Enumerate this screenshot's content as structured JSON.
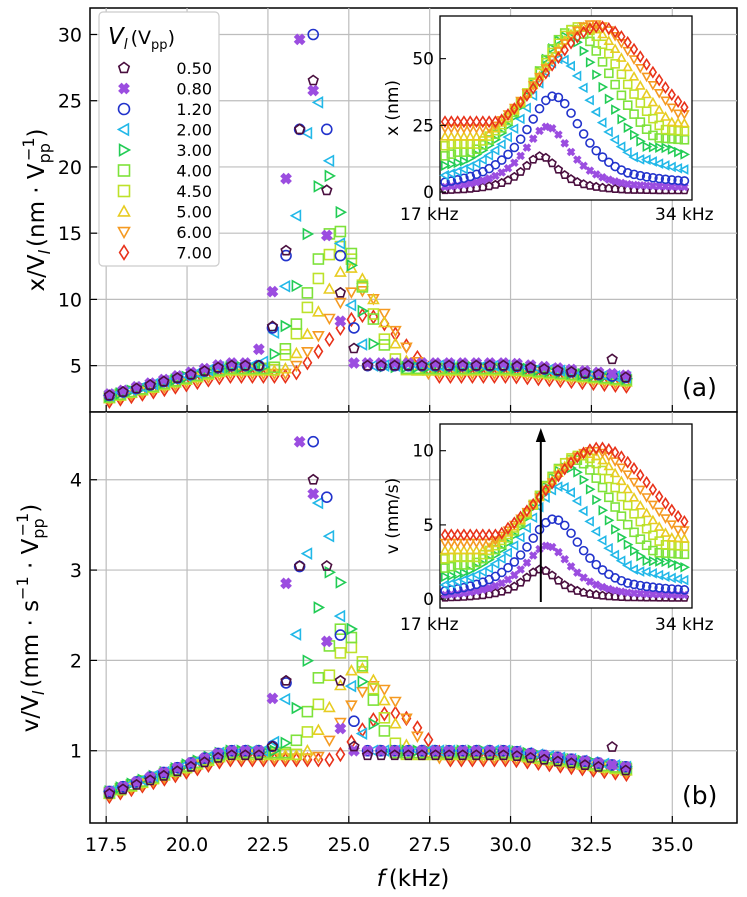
{
  "chart_data": [
    {
      "type": "scatter",
      "panel_label": "(a)",
      "ylabel_main": "x/V",
      "ylabel_sub": "l",
      "ylabel_unit": "(nm · V",
      "ylabel_unit_sub": "pp",
      "ylabel_unit_sup": "−1",
      "ylabel_close": ")",
      "xlim": [
        17,
        37
      ],
      "ylim": [
        1.5,
        32
      ],
      "yticks": [
        "5",
        "10",
        "15",
        "20",
        "25",
        "30"
      ],
      "legend": {
        "title_main": "V",
        "title_sub": "l",
        "title_unit": "(V",
        "title_unit_sub": "pp",
        "title_close": ")",
        "placement": "top-left",
        "entries": [
          "0.50",
          "0.80",
          "1.20",
          "2.00",
          "3.00",
          "4.00",
          "4.50",
          "5.00",
          "6.00",
          "7.00"
        ]
      },
      "series": [
        {
          "name": "0.50",
          "peak": 27.0,
          "f0": 23.8,
          "width": 1.5,
          "tail": 5.0
        },
        {
          "name": "0.80",
          "peak": 30.5,
          "f0": 23.6,
          "width": 1.4,
          "tail": 5.2
        },
        {
          "name": "1.20",
          "peak": 30.0,
          "f0": 23.9,
          "width": 1.5,
          "tail": 5.0
        },
        {
          "name": "2.00",
          "peak": 25.0,
          "f0": 24.0,
          "width": 1.7,
          "tail": 5.0
        },
        {
          "name": "3.00",
          "peak": 19.5,
          "f0": 24.3,
          "width": 2.1,
          "tail": 4.9
        },
        {
          "name": "4.00",
          "peak": 15.3,
          "f0": 24.6,
          "width": 2.6,
          "tail": 4.8
        },
        {
          "name": "4.50",
          "peak": 14.0,
          "f0": 24.7,
          "width": 2.8,
          "tail": 4.7
        },
        {
          "name": "5.00",
          "peak": 12.4,
          "f0": 25.0,
          "width": 3.1,
          "tail": 4.6
        },
        {
          "name": "6.00",
          "peak": 10.7,
          "f0": 25.3,
          "width": 3.6,
          "tail": 4.4
        },
        {
          "name": "7.00",
          "peak": 8.8,
          "f0": 25.5,
          "width": 4.3,
          "tail": 4.2
        }
      ],
      "inset": {
        "ylabel": "x (nm)",
        "x_start_label": "17 kHz",
        "x_end_label": "34 kHz",
        "ylim": [
          -3,
          66
        ],
        "yticks": [
          "0",
          "25",
          "50"
        ],
        "series_peaks": [
          13.5,
          24.5,
          36,
          50,
          58.5,
          61,
          62,
          62,
          63,
          62
        ]
      }
    },
    {
      "type": "scatter",
      "panel_label": "(b)",
      "ylabel_main": "v/V",
      "ylabel_sub": "l",
      "ylabel_unit": "(mm · s",
      "ylabel_unit_sup1": "−1",
      "ylabel_mid": " · V",
      "ylabel_unit_sub": "pp",
      "ylabel_unit_sup": "−1",
      "ylabel_close": ")",
      "xlabel_main": "f",
      "xlabel_unit": "(kHz)",
      "xlim": [
        17,
        37
      ],
      "ylim": [
        0.2,
        4.75
      ],
      "xticks": [
        "17.5",
        "20.0",
        "22.5",
        "25.0",
        "27.5",
        "30.0",
        "32.5",
        "35.0"
      ],
      "yticks": [
        "1",
        "2",
        "3",
        "4"
      ],
      "series": [
        {
          "name": "0.50",
          "peak": 4.0,
          "f0": 23.9,
          "width": 1.5,
          "tail": 0.95
        },
        {
          "name": "0.80",
          "peak": 4.55,
          "f0": 23.6,
          "width": 1.4,
          "tail": 1.0
        },
        {
          "name": "1.20",
          "peak": 4.5,
          "f0": 24.0,
          "width": 1.5,
          "tail": 1.0
        },
        {
          "name": "2.00",
          "peak": 3.75,
          "f0": 24.1,
          "width": 1.8,
          "tail": 1.0
        },
        {
          "name": "3.00",
          "peak": 3.0,
          "f0": 24.5,
          "width": 2.2,
          "tail": 1.0
        },
        {
          "name": "4.00",
          "peak": 2.35,
          "f0": 24.8,
          "width": 2.7,
          "tail": 0.98
        },
        {
          "name": "4.50",
          "peak": 2.15,
          "f0": 25.0,
          "width": 2.9,
          "tail": 0.96
        },
        {
          "name": "5.00",
          "peak": 1.92,
          "f0": 25.3,
          "width": 3.3,
          "tail": 0.95
        },
        {
          "name": "6.00",
          "peak": 1.72,
          "f0": 25.8,
          "width": 3.8,
          "tail": 0.92
        },
        {
          "name": "7.00",
          "peak": 1.42,
          "f0": 26.3,
          "width": 4.5,
          "tail": 0.9
        }
      ],
      "inset": {
        "ylabel": "v (mm/s)",
        "x_start_label": "17 kHz",
        "x_end_label": "34 kHz",
        "ylim": [
          -0.6,
          11.8
        ],
        "yticks": [
          "0",
          "5",
          "10"
        ],
        "series_peaks": [
          2.0,
          3.6,
          5.4,
          7.6,
          8.9,
          9.4,
          9.7,
          9.8,
          10.0,
          10.2
        ],
        "arrow": true
      }
    }
  ],
  "colors": [
    "#4a0f3f",
    "#9b4de0",
    "#2233cc",
    "#22b8e8",
    "#22cc55",
    "#7ee23a",
    "#bde22a",
    "#e8cc22",
    "#f59a22",
    "#e8321a"
  ],
  "markers": [
    "pentagon",
    "x-cross",
    "circle",
    "triangle-left",
    "triangle-right",
    "square",
    "square",
    "triangle-up",
    "triangle-down",
    "diamond"
  ]
}
